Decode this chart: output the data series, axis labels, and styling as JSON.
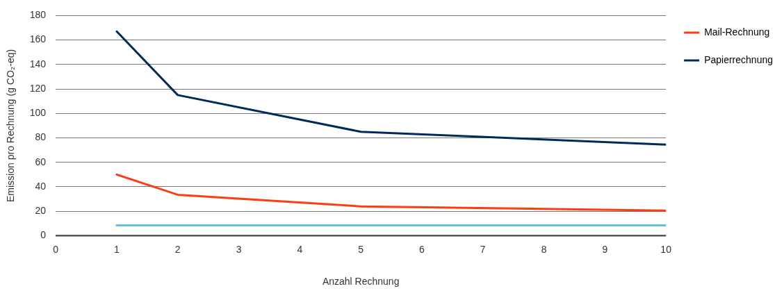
{
  "chart_data": {
    "type": "line",
    "xlabel": "Anzahl Rechnung",
    "ylabel": "Emission pro Rechnung (g CO₂-eq)",
    "xlim": [
      0,
      10
    ],
    "xticks": [
      0,
      1,
      2,
      3,
      4,
      5,
      6,
      7,
      8,
      9,
      10
    ],
    "ylim": [
      0,
      180
    ],
    "yticks": [
      0,
      20,
      40,
      60,
      80,
      100,
      120,
      140,
      160,
      180
    ],
    "grid": "y",
    "legend": "right",
    "marker": "none",
    "line_style": "solid",
    "series": [
      {
        "color": "#5bc2e7",
        "x": [
          1,
          10
        ],
        "values": [
          8.5,
          8.5
        ]
      },
      {
        "name": "Mail-Rechnung",
        "color": "#ff3a14",
        "x": [
          1,
          2,
          5,
          10
        ],
        "values": [
          50,
          33.5,
          24,
          20.5
        ]
      },
      {
        "name": "Papierrechnung",
        "color": "#002a5c",
        "x": [
          1,
          2,
          5,
          10
        ],
        "values": [
          167,
          115,
          85,
          74.5
        ]
      }
    ]
  }
}
